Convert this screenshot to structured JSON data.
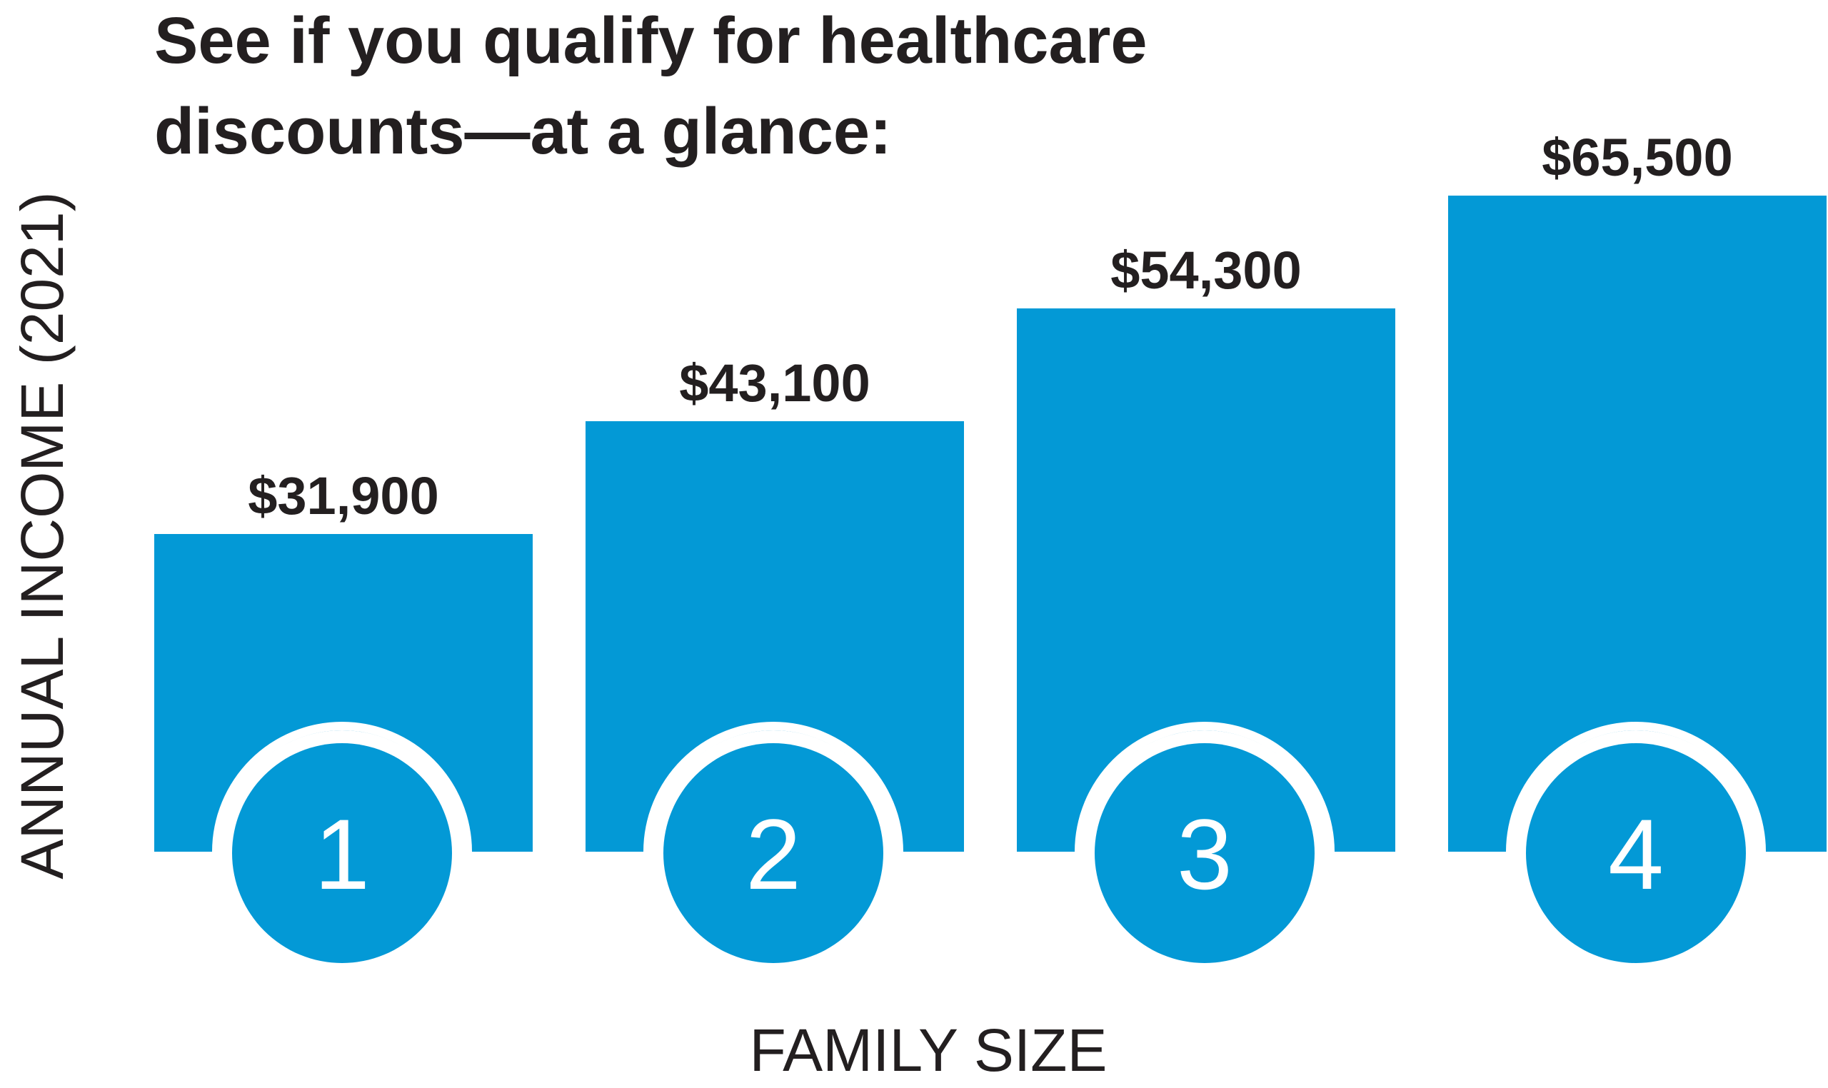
{
  "chart_data": {
    "type": "bar",
    "title_lines": [
      "See if you qualify for healthcare",
      "discounts—at a glance:"
    ],
    "xlabel": "FAMILY SIZE",
    "ylabel": "ANNUAL INCOME (2021)",
    "categories": [
      "1",
      "2",
      "3",
      "4"
    ],
    "values": [
      31900,
      43100,
      54300,
      65500
    ],
    "value_labels": [
      "$31,900",
      "$43,100",
      "$54,300",
      "$65,500"
    ],
    "ylim": [
      0,
      70000
    ],
    "grid": false,
    "legend": "none"
  },
  "colors": {
    "bar": "#0399d6",
    "text": "#231f20",
    "background": "#ffffff",
    "bubble_ring": "#ffffff"
  }
}
